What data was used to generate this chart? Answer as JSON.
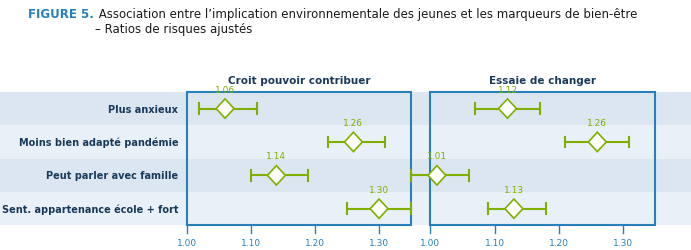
{
  "title_bold": "FIGURE 5.",
  "title_regular": " Association entre l’implication environnementale des jeunes et les marqueurs de bien-être\n– Ratios de risques ajustés",
  "col1_title": "Croit pouvoir contribuer",
  "col2_title": "Essaie de changer",
  "row_labels": [
    "Plus anxieux",
    "Moins bien adapté pandémie",
    "Peut parler avec famille",
    "Sent. appartenance école + fort"
  ],
  "col1_values": [
    1.06,
    1.26,
    1.14,
    1.3
  ],
  "col1_ci_low": [
    1.02,
    1.22,
    1.1,
    1.25
  ],
  "col1_ci_high": [
    1.11,
    1.31,
    1.19,
    1.35
  ],
  "col2_values": [
    1.12,
    1.26,
    1.01,
    1.13
  ],
  "col2_ci_low": [
    1.07,
    1.21,
    0.97,
    1.09
  ],
  "col2_ci_high": [
    1.17,
    1.31,
    1.06,
    1.18
  ],
  "xmin": 1.0,
  "xmax": 1.35,
  "xticks": [
    1.0,
    1.1,
    1.2,
    1.3
  ],
  "ref_line": 1.0,
  "bg_color": "#e8ecf0",
  "row_alt_color": "#dce6f1",
  "row_base_color": "#eaf0f7",
  "ci_color": "#7faf00",
  "ref_line_color": "#c0392b",
  "axis_color": "#2980b9",
  "label_color": "#1a3a5c",
  "title_color_bold": "#2980b9",
  "title_color_regular": "#1a1a1a",
  "col_title_color": "#1a3a5c",
  "value_label_color": "#7faf00",
  "tick_label_color": "#2980b9"
}
